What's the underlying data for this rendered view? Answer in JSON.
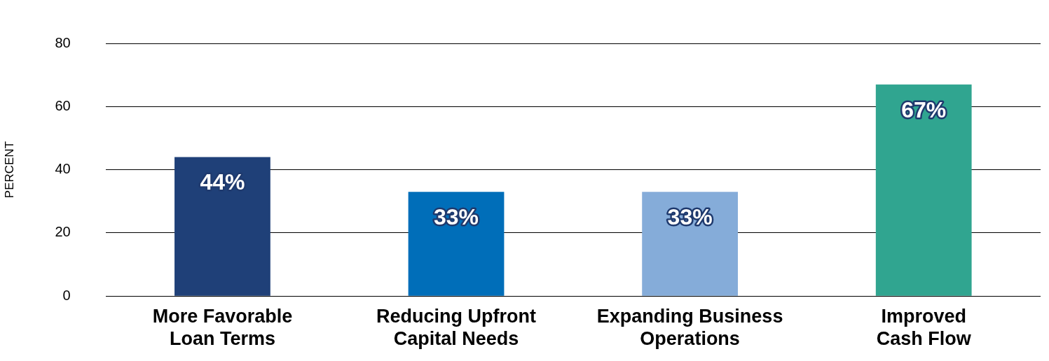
{
  "chart_data": {
    "type": "bar",
    "ylabel": "PERCENT",
    "categories": [
      "More Favorable Loan Terms",
      "Reducing Upfront Capital Needs",
      "Expanding Business Operations",
      "Improved Cash Flow"
    ],
    "values": [
      44,
      33,
      33,
      67
    ],
    "colors": [
      "#1f4078",
      "#006eb9",
      "#85acd9",
      "#30a590"
    ],
    "value_labels": [
      "44%",
      "33%",
      "33%",
      "67%"
    ],
    "ylim": [
      0,
      80
    ],
    "yticks": [
      0,
      20,
      40,
      60,
      80
    ],
    "grid": "y",
    "legend": false
  }
}
